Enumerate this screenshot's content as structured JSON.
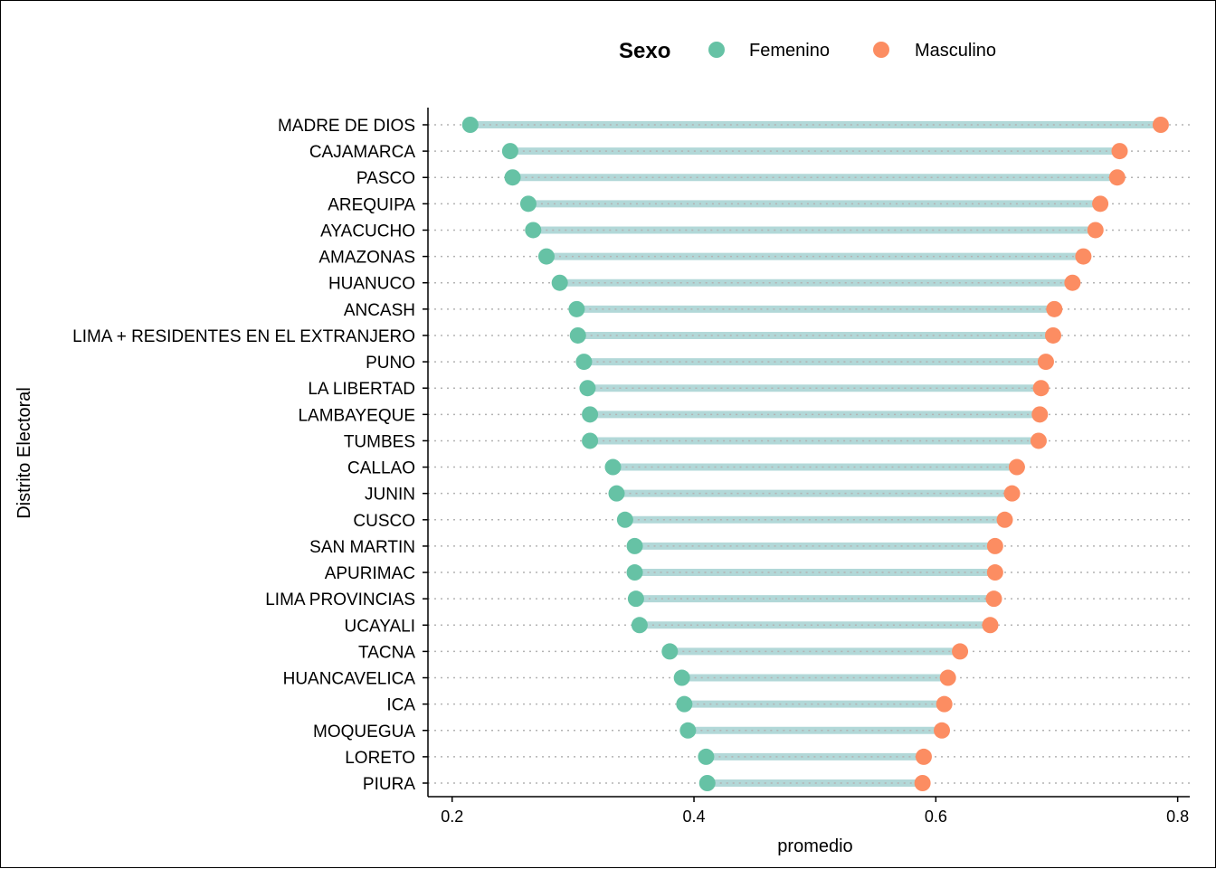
{
  "chart_data": {
    "type": "dumbbell",
    "xlabel": "promedio",
    "ylabel": "Distrito Electoral",
    "xlim": [
      0.18,
      0.81
    ],
    "x_ticks": [
      0.2,
      0.4,
      0.6,
      0.8
    ],
    "x_tick_labels": [
      "0.2",
      "0.4",
      "0.6",
      "0.8"
    ],
    "legend": {
      "title": "Sexo",
      "position": "top",
      "entries": [
        "Femenino",
        "Masculino"
      ]
    },
    "colors": {
      "Femenino": "#66c2a5",
      "Masculino": "#fc8d62",
      "segment": "#b2d8d8",
      "gridline": "#b3b3b3"
    },
    "grid": "horizontal dotted",
    "categories": [
      "MADRE DE DIOS",
      "CAJAMARCA",
      "PASCO",
      "AREQUIPA",
      "AYACUCHO",
      "AMAZONAS",
      "HUANUCO",
      "ANCASH",
      "LIMA + RESIDENTES EN EL EXTRANJERO",
      "PUNO",
      "LA LIBERTAD",
      "LAMBAYEQUE",
      "TUMBES",
      "CALLAO",
      "JUNIN",
      "CUSCO",
      "SAN MARTIN",
      "APURIMAC",
      "LIMA PROVINCIAS",
      "UCAYALI",
      "TACNA",
      "HUANCAVELICA",
      "ICA",
      "MOQUEGUA",
      "LORETO",
      "PIURA"
    ],
    "series": [
      {
        "name": "Femenino",
        "values": [
          0.215,
          0.248,
          0.25,
          0.263,
          0.267,
          0.278,
          0.289,
          0.303,
          0.304,
          0.309,
          0.312,
          0.314,
          0.314,
          0.333,
          0.336,
          0.343,
          0.351,
          0.351,
          0.352,
          0.355,
          0.38,
          0.39,
          0.392,
          0.395,
          0.41,
          0.411
        ]
      },
      {
        "name": "Masculino",
        "values": [
          0.786,
          0.752,
          0.75,
          0.736,
          0.732,
          0.722,
          0.713,
          0.698,
          0.697,
          0.691,
          0.687,
          0.686,
          0.685,
          0.667,
          0.663,
          0.657,
          0.649,
          0.649,
          0.648,
          0.645,
          0.62,
          0.61,
          0.607,
          0.605,
          0.59,
          0.589
        ]
      }
    ]
  }
}
